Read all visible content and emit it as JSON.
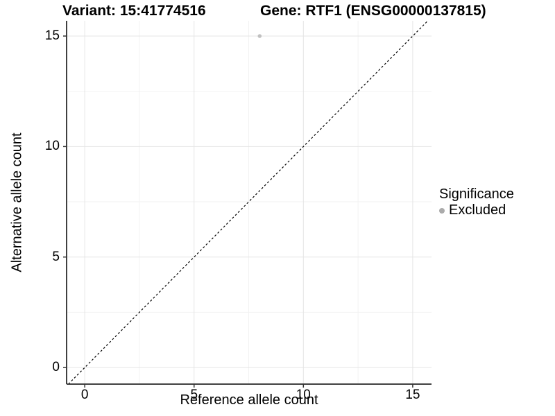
{
  "header": {
    "variant_title": "Variant: 15:41774516",
    "gene_title": "Gene: RTF1 (ENSG00000137815)"
  },
  "chart_data": {
    "type": "scatter",
    "xlabel": "Reference allele count",
    "ylabel": "Alternative allele count",
    "xlim": [
      -0.83,
      15.86
    ],
    "ylim": [
      -0.75,
      15.69
    ],
    "xticks": [
      0,
      5,
      10,
      15
    ],
    "yticks": [
      0,
      5,
      10,
      15
    ],
    "xticks_minor": [
      2.5,
      7.5,
      12.5
    ],
    "yticks_minor": [
      2.5,
      7.5,
      12.5
    ],
    "grid": "major+minor",
    "identity_line": {
      "slope": 1,
      "intercept": 0,
      "style": "dashed",
      "color": "#000000"
    },
    "series": [
      {
        "name": "Excluded",
        "color": "#c1c1c1",
        "point_radius": 2.8,
        "points": [
          {
            "x": 8,
            "y": 15
          }
        ]
      }
    ],
    "legend": {
      "title": "Significance",
      "position": "right",
      "items": [
        {
          "label": "Excluded",
          "color": "#ababab"
        }
      ]
    }
  },
  "colors": {
    "background": "#ffffff",
    "axis_line": "#404040",
    "tick_mark": "#333333",
    "grid_major": "#e5e5e5",
    "grid_minor": "#f2f2f2",
    "text": "#000000"
  }
}
